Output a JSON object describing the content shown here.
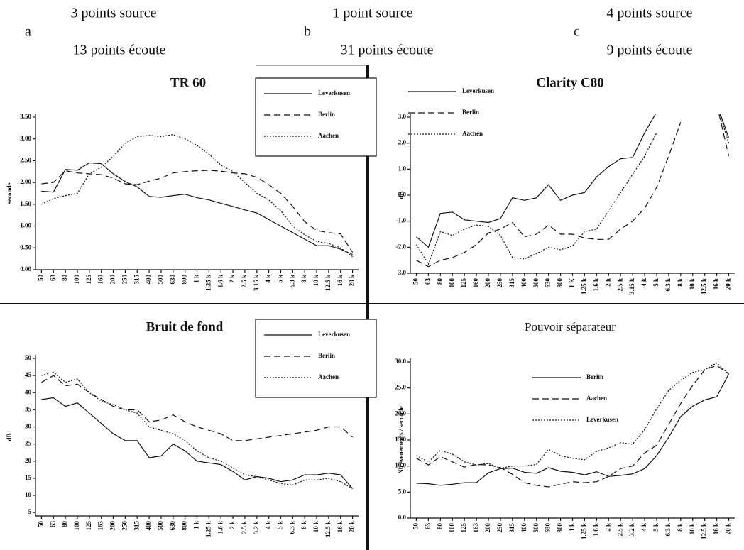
{
  "header": {
    "panels": [
      "a",
      "b",
      "c"
    ],
    "sources": [
      "3 points source",
      "1 point source",
      "4 points source"
    ],
    "listeners": [
      "13 points écoute",
      "31 points écoute",
      "9 points écoute"
    ]
  },
  "chart_data": [
    {
      "type": "line",
      "title": "TR 60",
      "bold_title": true,
      "y_label": "seconde",
      "legend": "upper right",
      "legend_box": true,
      "categories": [
        "50",
        "63",
        "80",
        "100",
        "125",
        "160",
        "200",
        "250",
        "315",
        "400",
        "500",
        "630",
        "800",
        "1 k",
        "1.25 k",
        "1.6 k",
        "2 k",
        "2.5 k",
        "3.15 k",
        "4 k",
        "5 k",
        "6.3 k",
        "8 k",
        "10 k",
        "12.5 k",
        "16 k",
        "20 k"
      ],
      "ylim": [
        0,
        3.5
      ],
      "yticks": [
        {
          "value": 0,
          "label": "0.00"
        },
        {
          "value": 0.5,
          "label": "0.50"
        },
        {
          "value": 1,
          "label": "1.00"
        },
        {
          "value": 1.5,
          "label": "1.50"
        },
        {
          "value": 2,
          "label": "2.00"
        },
        {
          "value": 2.5,
          "label": "2.50"
        },
        {
          "value": 3,
          "label": "3.00"
        },
        {
          "value": 3.5,
          "label": "3.50"
        }
      ],
      "series": [
        {
          "name": "Leverkusen",
          "color": "#111111",
          "style": "solid",
          "values": [
            1.8,
            1.78,
            2.3,
            2.28,
            2.45,
            2.43,
            2.2,
            2.02,
            1.9,
            1.68,
            1.66,
            1.7,
            1.73,
            1.65,
            1.6,
            1.52,
            1.45,
            1.37,
            1.3,
            1.15,
            1.0,
            0.85,
            0.7,
            0.55,
            0.55,
            0.47,
            0.35
          ]
        },
        {
          "name": "Berlin",
          "color": "#111111",
          "style": "dashed",
          "values": [
            1.97,
            2.0,
            2.27,
            2.22,
            2.2,
            2.18,
            2.1,
            1.97,
            1.95,
            2.03,
            2.1,
            2.22,
            2.25,
            2.27,
            2.28,
            2.26,
            2.22,
            2.2,
            2.12,
            1.95,
            1.75,
            1.45,
            1.1,
            0.9,
            0.85,
            0.82,
            0.4
          ]
        },
        {
          "name": "Aachen",
          "color": "#111111",
          "style": "dotted",
          "values": [
            1.5,
            1.63,
            1.7,
            1.75,
            2.2,
            2.35,
            2.6,
            2.9,
            3.05,
            3.08,
            3.05,
            3.1,
            3.0,
            2.85,
            2.65,
            2.4,
            2.25,
            2.0,
            1.75,
            1.6,
            1.35,
            1.0,
            0.8,
            0.65,
            0.6,
            0.5,
            0.3
          ]
        }
      ]
    },
    {
      "type": "line",
      "title": "Clarity C80",
      "bold_title": true,
      "y_label": "dB",
      "legend": "upper left",
      "legend_box": false,
      "categories": [
        "50",
        "63",
        "80",
        "100",
        "125",
        "160",
        "200",
        "250",
        "315",
        "400",
        "500",
        "630",
        "800",
        "1 K",
        "1.25 k",
        "1.6 k",
        "2 k",
        "2.5 k",
        "3.15 k",
        "4 k",
        "5 k",
        "6.3 k",
        "8 k",
        "10 k",
        "12.5 k",
        "16 k",
        "20 k"
      ],
      "ylim": [
        -3,
        3
      ],
      "yticks": [
        {
          "value": -3,
          "label": "-3.0"
        },
        {
          "value": -2,
          "label": "-2.0"
        },
        {
          "value": -1,
          "label": "-1.0"
        },
        {
          "value": 0,
          "label": "0.0"
        },
        {
          "value": 1,
          "label": "1.0"
        },
        {
          "value": 2,
          "label": "2.0"
        },
        {
          "value": 3,
          "label": "3.0"
        }
      ],
      "series": [
        {
          "name": "Leverkusen",
          "color": "#111111",
          "style": "solid",
          "values": [
            -1.6,
            -2.0,
            -0.7,
            -0.65,
            -0.95,
            -1.0,
            -1.05,
            -0.9,
            -0.1,
            -0.2,
            -0.1,
            0.4,
            -0.2,
            0.0,
            0.1,
            0.7,
            1.1,
            1.4,
            1.45,
            2.4,
            3.2,
            null,
            null,
            null,
            null,
            3.5,
            2.2
          ]
        },
        {
          "name": "Berlin",
          "color": "#111111",
          "style": "dashed",
          "values": [
            -2.5,
            -2.75,
            -2.5,
            -2.4,
            -2.2,
            -1.9,
            -1.45,
            -1.3,
            -1.05,
            -1.6,
            -1.5,
            -1.15,
            -1.5,
            -1.5,
            -1.65,
            -1.7,
            -1.7,
            -1.3,
            -1.0,
            -0.5,
            0.3,
            1.5,
            2.8,
            null,
            null,
            3.5,
            1.5
          ]
        },
        {
          "name": "Aachen",
          "color": "#111111",
          "style": "dotted",
          "values": [
            -1.9,
            -2.65,
            -1.4,
            -1.55,
            -1.3,
            -1.15,
            -1.2,
            -1.55,
            -2.4,
            -2.45,
            -2.25,
            -2.0,
            -2.1,
            -1.95,
            -1.4,
            -1.3,
            -0.6,
            0.1,
            0.8,
            1.5,
            2.4,
            null,
            null,
            null,
            null,
            3.5,
            2.0
          ]
        }
      ]
    },
    {
      "type": "line",
      "title": "Bruit de fond",
      "bold_title": true,
      "y_label": "dB",
      "legend": "upper right",
      "legend_box": true,
      "categories": [
        "50",
        "63",
        "80",
        "100",
        "125",
        "163",
        "200",
        "250",
        "315",
        "400",
        "500",
        "630",
        "800",
        "1 k",
        "1.25 k",
        "1.6 k",
        "2 k",
        "2.5 k",
        "3.2 k",
        "4 k",
        "5 k",
        "6.3 k",
        "8 k",
        "10 k",
        "12.5 k",
        "16 k",
        "20 k"
      ],
      "ylim": [
        4,
        50
      ],
      "yticks": [
        5,
        10,
        15,
        20,
        25,
        30,
        35,
        40,
        45,
        50
      ],
      "series": [
        {
          "name": "Leverkusen",
          "color": "#111111",
          "style": "solid",
          "values": [
            38,
            38.5,
            36,
            37,
            34,
            31,
            28,
            26,
            26,
            21,
            21.5,
            25,
            23,
            20,
            19.5,
            19,
            17,
            14.5,
            15.5,
            15,
            14,
            14.5,
            16,
            16,
            16.5,
            16,
            12
          ]
        },
        {
          "name": "Berlin",
          "color": "#111111",
          "style": "dashed",
          "values": [
            43,
            45,
            42,
            42.5,
            40,
            38,
            36,
            35,
            35,
            31.5,
            32,
            33.5,
            31.5,
            30,
            29,
            28,
            26,
            26,
            26.5,
            27,
            27.5,
            28,
            28.5,
            29,
            30,
            30,
            27
          ]
        },
        {
          "name": "Aachen",
          "color": "#111111",
          "style": "dotted",
          "values": [
            45,
            46,
            43,
            44,
            40,
            37.5,
            36.5,
            35,
            34,
            30,
            29,
            28,
            26,
            23,
            21,
            20,
            18,
            16,
            15.5,
            14.5,
            13.5,
            13,
            14.5,
            14.5,
            15,
            14,
            12
          ]
        }
      ]
    },
    {
      "type": "line",
      "title": "Pouvoir séparateur",
      "bold_title": false,
      "y_label": "Nb évenements / seconde",
      "legend": "upper center",
      "legend_box": false,
      "categories": [
        "50",
        "63",
        "80",
        "100",
        "125",
        "163",
        "200",
        "250",
        "315",
        "400",
        "500",
        "630",
        "800",
        "1 k",
        "1.25 k",
        "1.6 k",
        "2 k",
        "2.5 k",
        "3.2 k",
        "4 k",
        "5 k",
        "6.3 k",
        "8 k",
        "10 k",
        "12.5 k",
        "16 k",
        "20 k"
      ],
      "ylim": [
        0,
        30
      ],
      "yticks": [
        {
          "value": 0,
          "label": "0.0"
        },
        {
          "value": 5,
          "label": "5.0"
        },
        {
          "value": 10,
          "label": "10.0"
        },
        {
          "value": 15,
          "label": "15.0"
        },
        {
          "value": 20,
          "label": "20.0"
        },
        {
          "value": 25,
          "label": "25.0"
        },
        {
          "value": 30,
          "label": "30.0"
        }
      ],
      "series": [
        {
          "name": "Berlin",
          "color": "#111111",
          "style": "solid",
          "values": [
            6.7,
            6.6,
            6.3,
            6.5,
            6.8,
            6.8,
            8.7,
            9.5,
            9.6,
            8.8,
            8.6,
            9.7,
            9.0,
            8.8,
            8.3,
            8.9,
            8.0,
            8.2,
            8.5,
            9.5,
            12,
            15.5,
            19.5,
            21.5,
            22.7,
            23.3,
            27.7
          ]
        },
        {
          "name": "Aachen",
          "color": "#111111",
          "style": "dashed",
          "values": [
            11.5,
            10.2,
            11.8,
            10.8,
            9.8,
            10.3,
            10.2,
            9.7,
            8.4,
            6.8,
            6.3,
            6.0,
            6.5,
            7.0,
            6.8,
            7.0,
            8.0,
            9.5,
            10.0,
            12.5,
            14,
            18,
            22,
            25.5,
            28.5,
            29.3,
            27.7
          ]
        },
        {
          "name": "Leverkusen",
          "color": "#111111",
          "style": "dotted",
          "values": [
            12,
            10.8,
            13,
            12.3,
            10.8,
            10.2,
            10.5,
            9.6,
            10.0,
            10.0,
            10.3,
            13.2,
            12,
            11.5,
            11.2,
            12.8,
            13.5,
            14.5,
            14.2,
            17,
            21,
            24.5,
            26.5,
            28,
            28.5,
            29.8,
            27.7
          ]
        }
      ]
    }
  ]
}
